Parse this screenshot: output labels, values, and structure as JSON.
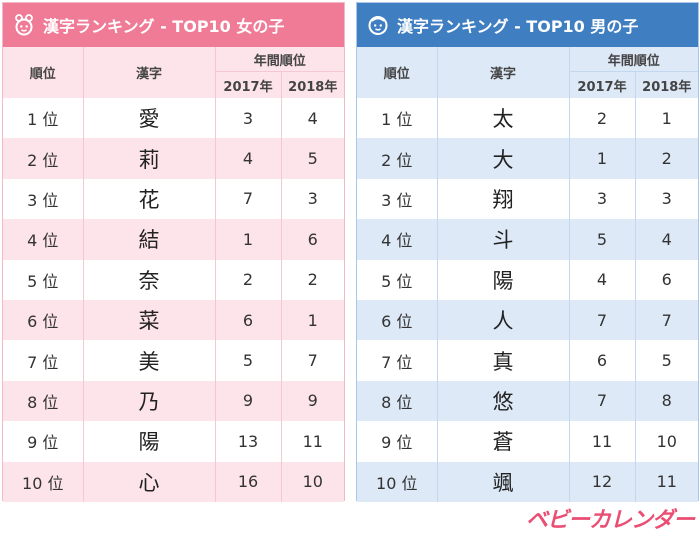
{
  "girls": {
    "title": "漢字ランキング - TOP10 女の子",
    "headers": {
      "rank": "順位",
      "kanji": "漢字",
      "yearly": "年間順位",
      "y2017": "2017年",
      "y2018": "2018年"
    },
    "rows": [
      {
        "rank": "1 位",
        "kanji": "愛",
        "y2017": "3",
        "y2018": "4"
      },
      {
        "rank": "2 位",
        "kanji": "莉",
        "y2017": "4",
        "y2018": "5"
      },
      {
        "rank": "3 位",
        "kanji": "花",
        "y2017": "7",
        "y2018": "3"
      },
      {
        "rank": "4 位",
        "kanji": "結",
        "y2017": "1",
        "y2018": "6"
      },
      {
        "rank": "5 位",
        "kanji": "奈",
        "y2017": "2",
        "y2018": "2"
      },
      {
        "rank": "6 位",
        "kanji": "菜",
        "y2017": "6",
        "y2018": "1"
      },
      {
        "rank": "7 位",
        "kanji": "美",
        "y2017": "5",
        "y2018": "7"
      },
      {
        "rank": "8 位",
        "kanji": "乃",
        "y2017": "9",
        "y2018": "9"
      },
      {
        "rank": "9 位",
        "kanji": "陽",
        "y2017": "13",
        "y2018": "11"
      },
      {
        "rank": "10 位",
        "kanji": "心",
        "y2017": "16",
        "y2018": "10"
      }
    ],
    "accent": "#ef7b96"
  },
  "boys": {
    "title": "漢字ランキング - TOP10 男の子",
    "headers": {
      "rank": "順位",
      "kanji": "漢字",
      "yearly": "年間順位",
      "y2017": "2017年",
      "y2018": "2018年"
    },
    "rows": [
      {
        "rank": "1 位",
        "kanji": "太",
        "y2017": "2",
        "y2018": "1"
      },
      {
        "rank": "2 位",
        "kanji": "大",
        "y2017": "1",
        "y2018": "2"
      },
      {
        "rank": "3 位",
        "kanji": "翔",
        "y2017": "3",
        "y2018": "3"
      },
      {
        "rank": "4 位",
        "kanji": "斗",
        "y2017": "5",
        "y2018": "4"
      },
      {
        "rank": "5 位",
        "kanji": "陽",
        "y2017": "4",
        "y2018": "6"
      },
      {
        "rank": "6 位",
        "kanji": "人",
        "y2017": "7",
        "y2018": "7"
      },
      {
        "rank": "7 位",
        "kanji": "真",
        "y2017": "6",
        "y2018": "5"
      },
      {
        "rank": "8 位",
        "kanji": "悠",
        "y2017": "7",
        "y2018": "8"
      },
      {
        "rank": "9 位",
        "kanji": "蒼",
        "y2017": "11",
        "y2018": "10"
      },
      {
        "rank": "10 位",
        "kanji": "颯",
        "y2017": "12",
        "y2018": "11"
      }
    ],
    "accent": "#3f7fc1"
  },
  "logo": {
    "text": "ベビーカレンダー"
  },
  "icons": {
    "girls_header_icon": "girl-face-icon",
    "boys_header_icon": "boy-face-icon"
  }
}
